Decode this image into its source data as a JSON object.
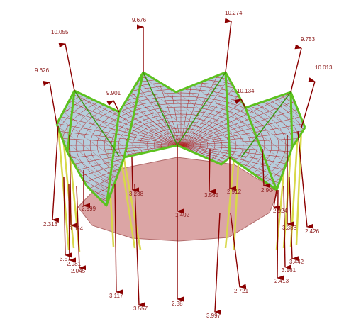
{
  "colors": {
    "arrow": "#8b0000",
    "label": "#8b1a1a",
    "membrane": "#a9c4d6",
    "mesh": "#b22222",
    "cable": "#5cc21e",
    "mast": "#d8d84a",
    "base": "#cc7f7f"
  },
  "reaction_labels": [
    {
      "id": "r01",
      "text": "9.676"
    },
    {
      "id": "r02",
      "text": "10.274"
    },
    {
      "id": "r03",
      "text": "10.055"
    },
    {
      "id": "r04",
      "text": "9.753"
    },
    {
      "id": "r05",
      "text": "10.013"
    },
    {
      "id": "r06",
      "text": "9.626"
    },
    {
      "id": "r07",
      "text": "9.901"
    },
    {
      "id": "r08",
      "text": "10.134"
    },
    {
      "id": "r09",
      "text": "3.238"
    },
    {
      "id": "r10",
      "text": "3.565"
    },
    {
      "id": "r11",
      "text": "2.912"
    },
    {
      "id": "r12",
      "text": "2.904"
    },
    {
      "id": "r13",
      "text": "2.924"
    },
    {
      "id": "r14",
      "text": "2.999"
    },
    {
      "id": "r15",
      "text": "1.402"
    },
    {
      "id": "r16",
      "text": "2.313"
    },
    {
      "id": "r17",
      "text": "3.694"
    },
    {
      "id": "r18",
      "text": "3.388"
    },
    {
      "id": "r19",
      "text": "2.426"
    },
    {
      "id": "r20",
      "text": "3.57"
    },
    {
      "id": "r21",
      "text": "2.981"
    },
    {
      "id": "r22",
      "text": "2.045"
    },
    {
      "id": "r23",
      "text": "3.442"
    },
    {
      "id": "r24",
      "text": "3.161"
    },
    {
      "id": "r25",
      "text": "2.413"
    },
    {
      "id": "r26",
      "text": "3.117"
    },
    {
      "id": "r27",
      "text": "3.557"
    },
    {
      "id": "r28",
      "text": "2.38"
    },
    {
      "id": "r29",
      "text": "3.997"
    },
    {
      "id": "r30",
      "text": "2.721"
    }
  ]
}
